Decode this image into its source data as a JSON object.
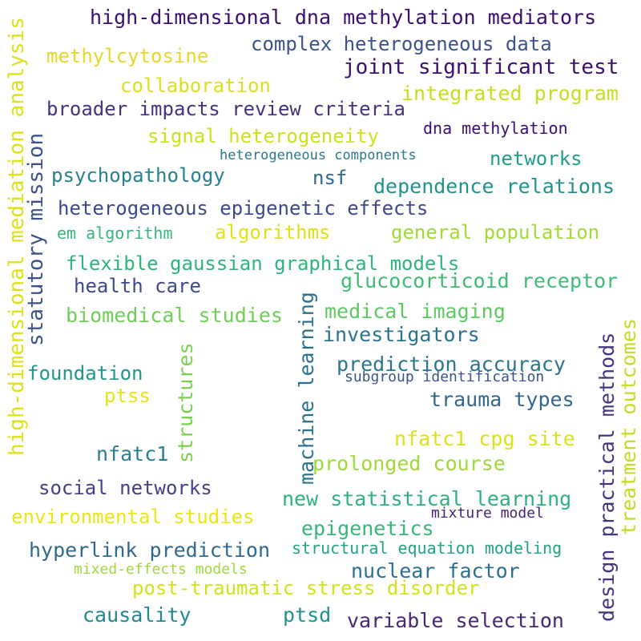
{
  "words": [
    {
      "text": "high-dimensional dna methylation mediators",
      "color": "#3b0f70"
    },
    {
      "text": "complex heterogeneous data",
      "color": "#3b528b"
    },
    {
      "text": "methylcytosine",
      "color": "#e6d72a"
    },
    {
      "text": "joint significant test",
      "color": "#3b0f70"
    },
    {
      "text": "collaboration",
      "color": "#d8e219"
    },
    {
      "text": "integrated program",
      "color": "#c2df23"
    },
    {
      "text": "broader impacts review criteria",
      "color": "#46327e"
    },
    {
      "text": "dna methylation",
      "color": "#3b0f70"
    },
    {
      "text": "signal heterogeneity",
      "color": "#cde11d"
    },
    {
      "text": "heterogeneous components",
      "color": "#2a788e"
    },
    {
      "text": "networks",
      "color": "#1f9e89"
    },
    {
      "text": "psychopathology",
      "color": "#26828e"
    },
    {
      "text": "nsf",
      "color": "#31688e"
    },
    {
      "text": "dependence relations",
      "color": "#21918c"
    },
    {
      "text": "heterogeneous epigenetic effects",
      "color": "#3e4989"
    },
    {
      "text": "em algorithm",
      "color": "#35b779"
    },
    {
      "text": "algorithms",
      "color": "#dde318"
    },
    {
      "text": "general population",
      "color": "#a2da37"
    },
    {
      "text": "flexible gaussian graphical models",
      "color": "#2fb47c"
    },
    {
      "text": "health care",
      "color": "#3e4a89"
    },
    {
      "text": "glucocorticoid receptor",
      "color": "#3fbc73"
    },
    {
      "text": "biomedical studies",
      "color": "#6ece58"
    },
    {
      "text": "medical imaging",
      "color": "#5ec962"
    },
    {
      "text": "investigators",
      "color": "#2c728e"
    },
    {
      "text": "prediction accuracy",
      "color": "#2a768e"
    },
    {
      "text": "subgroup identification",
      "color": "#3a548c"
    },
    {
      "text": "foundation",
      "color": "#1f988b"
    },
    {
      "text": "ptss",
      "color": "#e5e419"
    },
    {
      "text": "trauma types",
      "color": "#31678e"
    },
    {
      "text": "nfatc1 cpg site",
      "color": "#dae319"
    },
    {
      "text": "nfatc1",
      "color": "#27808e"
    },
    {
      "text": "prolonged course",
      "color": "#a0da39"
    },
    {
      "text": "social networks",
      "color": "#414287"
    },
    {
      "text": "new statistical learning",
      "color": "#2db27d"
    },
    {
      "text": "environmental studies",
      "color": "#e9e51a"
    },
    {
      "text": "mixture model",
      "color": "#482475"
    },
    {
      "text": "epigenetics",
      "color": "#35b779"
    },
    {
      "text": "hyperlink prediction",
      "color": "#30698e"
    },
    {
      "text": "structural equation modeling",
      "color": "#20a386"
    },
    {
      "text": "mixed-effects models",
      "color": "#9fda3a"
    },
    {
      "text": "nuclear factor",
      "color": "#2d6f8e"
    },
    {
      "text": "post-traumatic stress disorder",
      "color": "#d2e21b"
    },
    {
      "text": "causality",
      "color": "#24868e"
    },
    {
      "text": "ptsd",
      "color": "#21918c"
    },
    {
      "text": "variable selection",
      "color": "#482677"
    },
    {
      "text": "high-dimensional mediation analysis",
      "color": "#dde318"
    },
    {
      "text": "statutory mission",
      "color": "#3b528b"
    },
    {
      "text": "machine learning",
      "color": "#2c728e"
    },
    {
      "text": "structures",
      "color": "#7ad151"
    },
    {
      "text": "design practical methods",
      "color": "#46337e"
    },
    {
      "text": "treatment outcomes",
      "color": "#bddf26"
    }
  ]
}
